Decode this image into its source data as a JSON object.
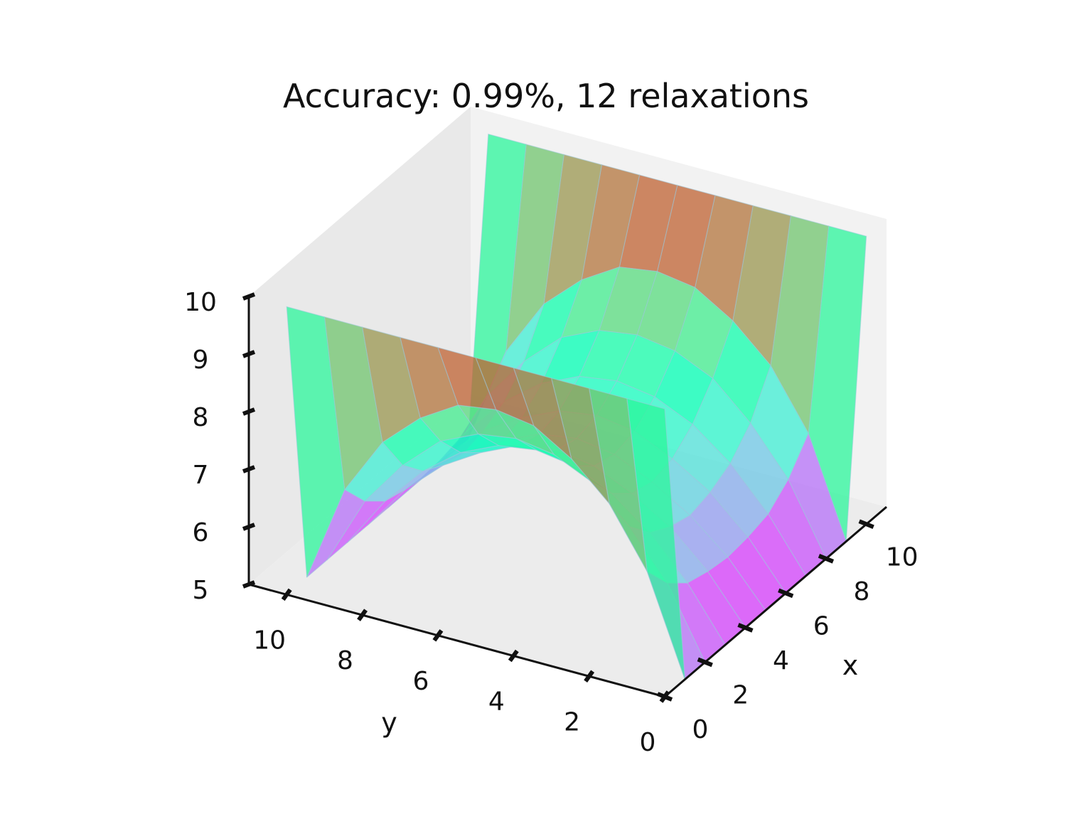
{
  "chart_data": {
    "type": "surface3d",
    "title": "Accuracy: 0.99%, 12 relaxations",
    "xlabel": "x",
    "ylabel": "y",
    "zlabel": "",
    "x_ticks": [
      "0",
      "2",
      "4",
      "6",
      "8",
      "10"
    ],
    "y_ticks": [
      "0",
      "2",
      "4",
      "6",
      "8",
      "10"
    ],
    "z_ticks": [
      "5",
      "6",
      "7",
      "8",
      "9",
      "10"
    ],
    "xlim": [
      0,
      11
    ],
    "ylim": [
      0,
      11
    ],
    "zlim": [
      5,
      10
    ],
    "x": [
      0,
      1,
      2,
      3,
      4,
      5,
      6,
      7,
      8,
      9,
      10
    ],
    "y": [
      0,
      1,
      2,
      3,
      4,
      5,
      6,
      7,
      8,
      9,
      10
    ],
    "z": [
      [
        10,
        10,
        10,
        10,
        10,
        10,
        10,
        10,
        10,
        10,
        10
      ],
      [
        5,
        6.7,
        7.7,
        8.3,
        8.7,
        8.8,
        8.7,
        8.3,
        7.7,
        6.7,
        5
      ],
      [
        5,
        6.2,
        7.0,
        7.6,
        7.9,
        8.0,
        7.9,
        7.6,
        7.0,
        6.2,
        5
      ],
      [
        5,
        5.9,
        6.6,
        7.1,
        7.4,
        7.5,
        7.4,
        7.1,
        6.6,
        5.9,
        5
      ],
      [
        5,
        5.8,
        6.4,
        6.8,
        7.1,
        7.2,
        7.1,
        6.8,
        6.4,
        5.8,
        5
      ],
      [
        5,
        5.75,
        6.3,
        6.7,
        7.0,
        7.1,
        7.0,
        6.7,
        6.3,
        5.75,
        5
      ],
      [
        5,
        5.8,
        6.4,
        6.8,
        7.1,
        7.2,
        7.1,
        6.8,
        6.4,
        5.8,
        5
      ],
      [
        5,
        5.9,
        6.6,
        7.1,
        7.4,
        7.5,
        7.4,
        7.1,
        6.6,
        5.9,
        5
      ],
      [
        5,
        6.2,
        7.0,
        7.6,
        7.9,
        8.0,
        7.9,
        7.6,
        7.0,
        6.2,
        5
      ],
      [
        5,
        6.7,
        7.7,
        8.3,
        8.7,
        8.8,
        8.7,
        8.3,
        7.7,
        6.7,
        5
      ],
      [
        10,
        10,
        10,
        10,
        10,
        10,
        10,
        10,
        10,
        10,
        10
      ]
    ],
    "colormap": "rainbow",
    "surface_alpha": 0.75,
    "grid": true
  },
  "colors": {
    "pane": "#ebebeb",
    "axis_line": "#111111",
    "background": "#ffffff"
  }
}
